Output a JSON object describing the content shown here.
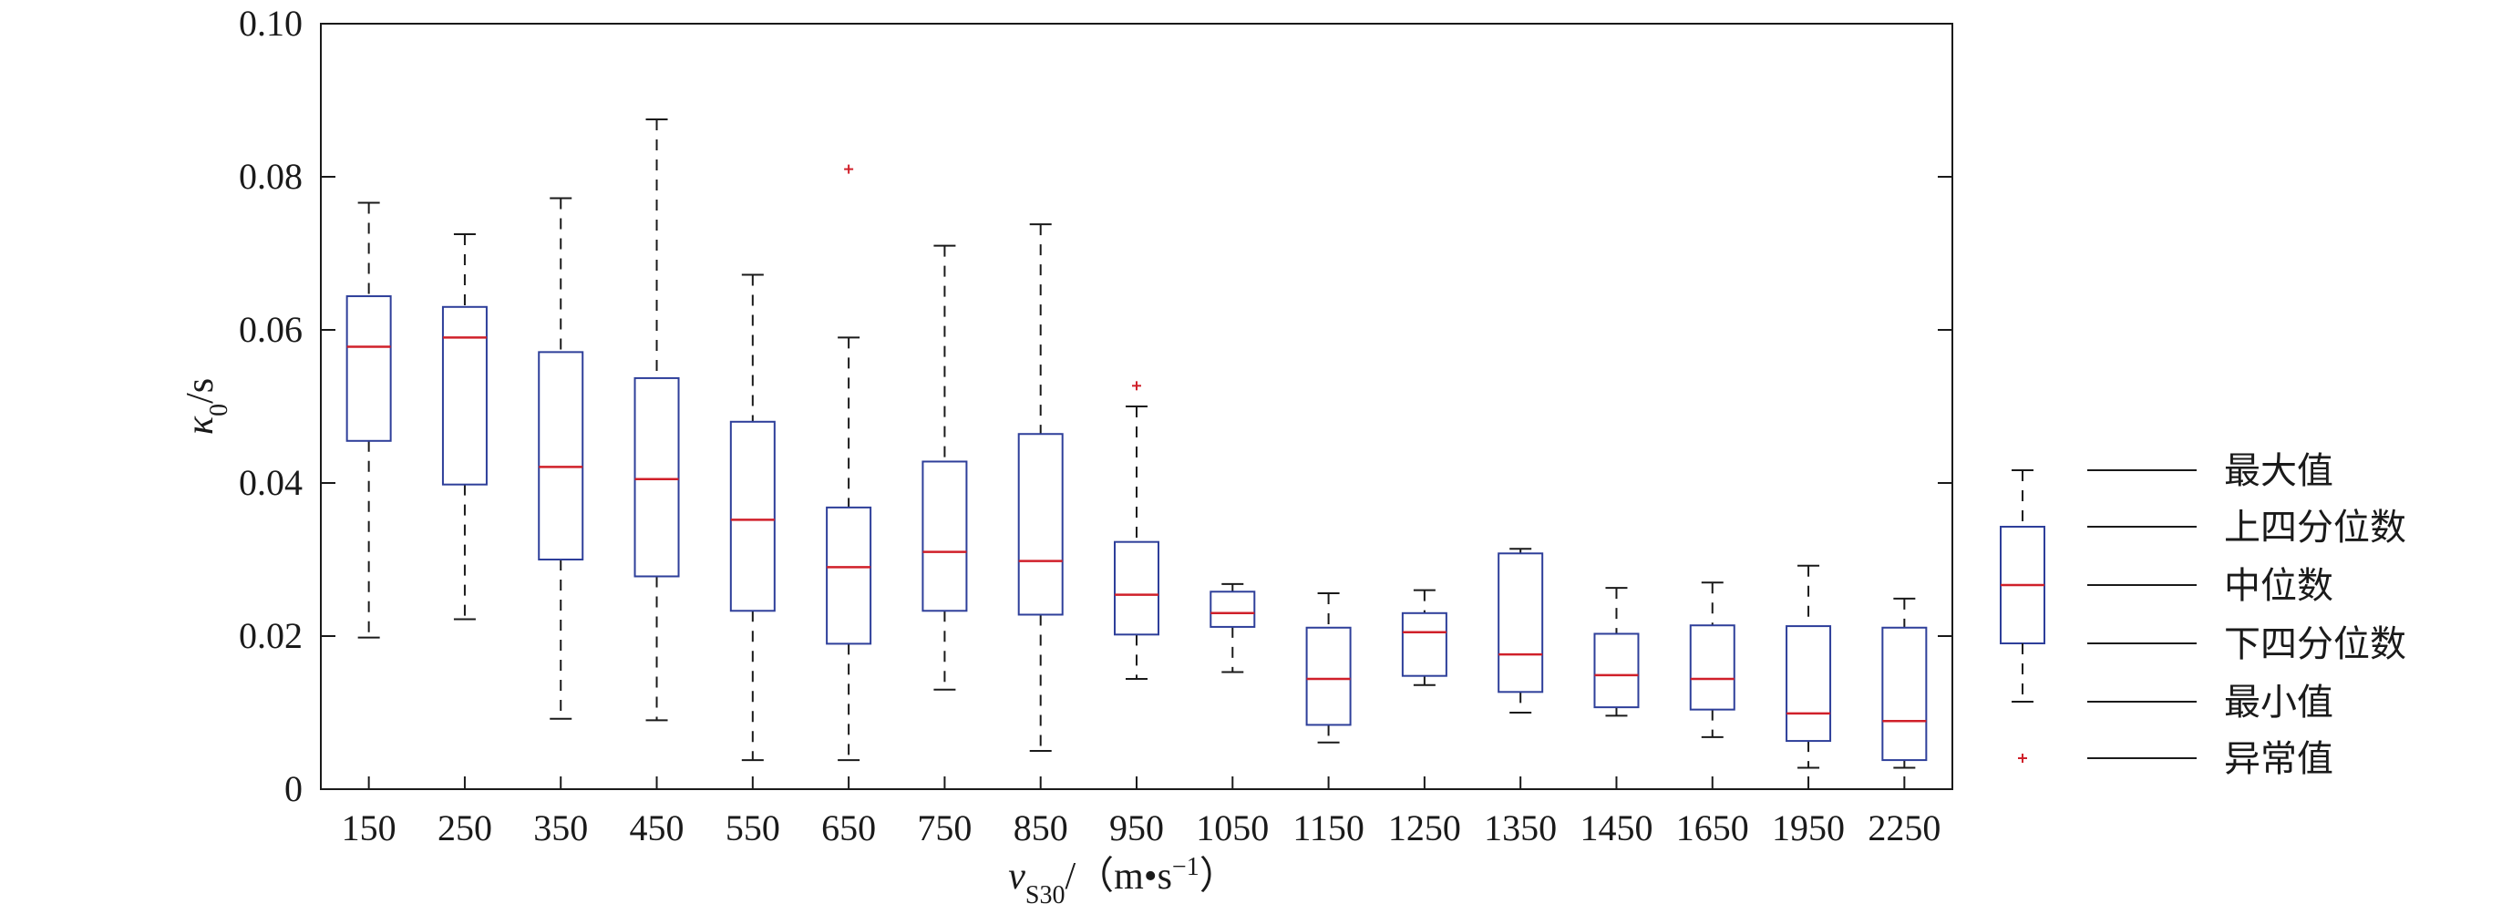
{
  "chart_data": {
    "type": "boxplot",
    "xlabel": {
      "var": "v",
      "sub": "S30",
      "unit_prefix": "/（m",
      "bullet": "•",
      "unit_s": "s",
      "sup": "−1",
      "unit_suffix": "）"
    },
    "ylabel": {
      "var": "κ",
      "sub": "0",
      "unit": "/s"
    },
    "ylim": [
      0,
      0.1
    ],
    "y_ticks": [
      "0",
      "0.02",
      "0.04",
      "0.06",
      "0.08",
      "0.10"
    ],
    "y_tick_values": [
      0,
      0.02,
      0.04,
      0.06,
      0.08,
      0.1
    ],
    "grid": false,
    "categories": [
      "150",
      "250",
      "350",
      "450",
      "550",
      "650",
      "750",
      "850",
      "950",
      "1050",
      "1150",
      "1250",
      "1350",
      "1450",
      "1650",
      "1950",
      "2250"
    ],
    "boxes": [
      {
        "min": 0.0198,
        "q1": 0.0455,
        "median": 0.0578,
        "q3": 0.0644,
        "max": 0.0766,
        "outliers": []
      },
      {
        "min": 0.0222,
        "q1": 0.0398,
        "median": 0.059,
        "q3": 0.063,
        "max": 0.0725,
        "outliers": []
      },
      {
        "min": 0.0092,
        "q1": 0.03,
        "median": 0.0421,
        "q3": 0.0571,
        "max": 0.0772,
        "outliers": []
      },
      {
        "min": 0.009,
        "q1": 0.0278,
        "median": 0.0405,
        "q3": 0.0537,
        "max": 0.0875,
        "outliers": []
      },
      {
        "min": 0.0038,
        "q1": 0.0233,
        "median": 0.0352,
        "q3": 0.048,
        "max": 0.0672,
        "outliers": []
      },
      {
        "min": 0.0038,
        "q1": 0.019,
        "median": 0.029,
        "q3": 0.0368,
        "max": 0.059,
        "outliers": [
          0.081
        ]
      },
      {
        "min": 0.013,
        "q1": 0.0233,
        "median": 0.031,
        "q3": 0.0428,
        "max": 0.071,
        "outliers": []
      },
      {
        "min": 0.005,
        "q1": 0.0228,
        "median": 0.0298,
        "q3": 0.0464,
        "max": 0.0738,
        "outliers": []
      },
      {
        "min": 0.0144,
        "q1": 0.0202,
        "median": 0.0254,
        "q3": 0.0323,
        "max": 0.05,
        "outliers": [
          0.0527
        ]
      },
      {
        "min": 0.0153,
        "q1": 0.0212,
        "median": 0.023,
        "q3": 0.0258,
        "max": 0.0268,
        "outliers": []
      },
      {
        "min": 0.0061,
        "q1": 0.0084,
        "median": 0.0144,
        "q3": 0.0211,
        "max": 0.0256,
        "outliers": []
      },
      {
        "min": 0.0136,
        "q1": 0.0148,
        "median": 0.0205,
        "q3": 0.023,
        "max": 0.026,
        "outliers": []
      },
      {
        "min": 0.01,
        "q1": 0.0127,
        "median": 0.0176,
        "q3": 0.0308,
        "max": 0.0314,
        "outliers": []
      },
      {
        "min": 0.0096,
        "q1": 0.0107,
        "median": 0.0149,
        "q3": 0.0203,
        "max": 0.0263,
        "outliers": []
      },
      {
        "min": 0.0068,
        "q1": 0.0104,
        "median": 0.0144,
        "q3": 0.0214,
        "max": 0.027,
        "outliers": []
      },
      {
        "min": 0.0028,
        "q1": 0.0063,
        "median": 0.0099,
        "q3": 0.0213,
        "max": 0.0292,
        "outliers": []
      },
      {
        "min": 0.0028,
        "q1": 0.0038,
        "median": 0.0089,
        "q3": 0.0211,
        "max": 0.0249,
        "outliers": []
      }
    ],
    "legend": {
      "position": "right",
      "items": [
        "最大值",
        "上四分位数",
        "中位数",
        "下四分位数",
        "最小值",
        "异常值"
      ]
    },
    "colors": {
      "box": "#2e3f9a",
      "median": "#d0202a",
      "whisker": "#1a1a1a",
      "outlier": "#d0202a",
      "axis": "#1a1a1a"
    }
  }
}
